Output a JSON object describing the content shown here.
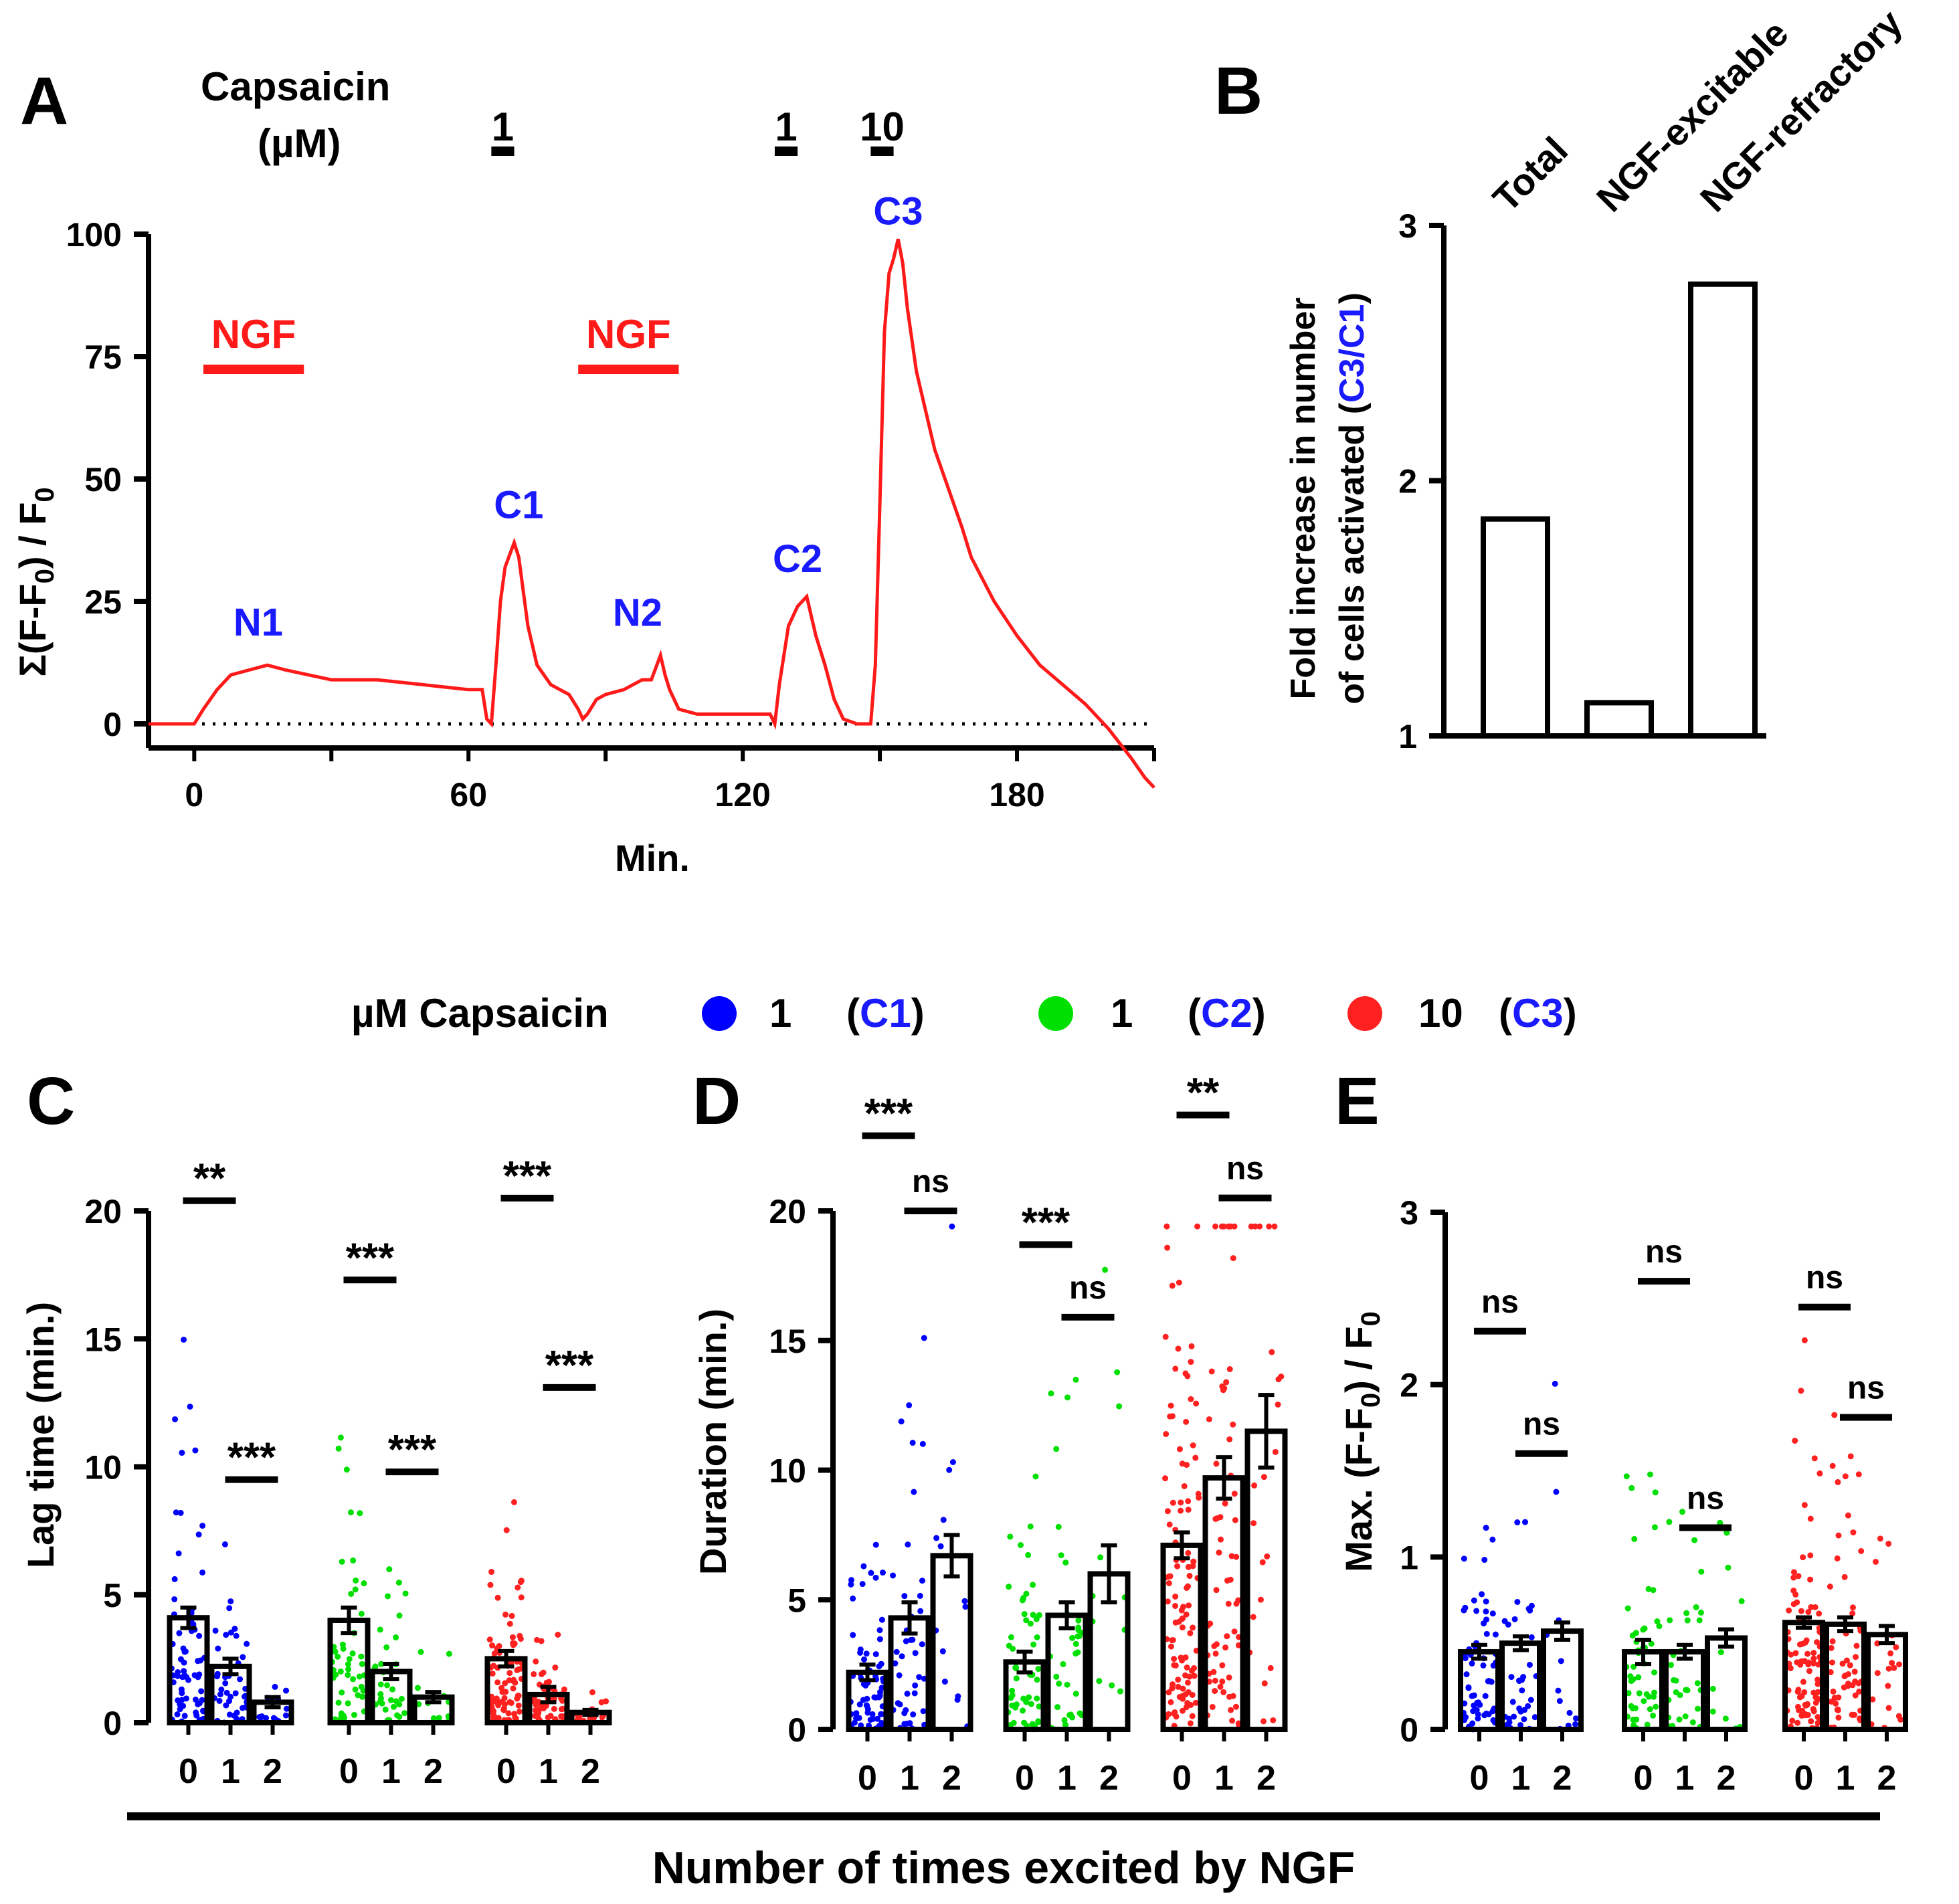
{
  "legend": {
    "prefix": "µM Capsaicin",
    "items": [
      {
        "conc": "1",
        "cond": "C1",
        "color": "#0000ff"
      },
      {
        "conc": "1",
        "cond": "C2",
        "color": "#00e000"
      },
      {
        "conc": "10",
        "cond": "C3",
        "color": "#ff2020"
      }
    ]
  },
  "bottom_label": "Number of times excited by NGF",
  "colors": {
    "trace": "#ff1a1a",
    "label_blue": "#1a1aff",
    "red": "#ff1a1a"
  },
  "chart_data": [
    {
      "panel": "A",
      "type": "line",
      "ylabel": "Σ(F-F0) / F0",
      "xlabel": "Min.",
      "xlim": [
        -10,
        210
      ],
      "ylim": [
        0,
        100
      ],
      "xticks": [
        "0",
        "60",
        "120",
        "180"
      ],
      "yticks": [
        "0",
        "25",
        "50",
        "75",
        "100"
      ],
      "capsaicin_label": [
        "Capsaicin",
        "(µM)"
      ],
      "applications": [
        {
          "label": "1",
          "start": 65,
          "end": 70
        },
        {
          "label": "1",
          "start": 127,
          "end": 132
        },
        {
          "label": "10",
          "start": 148,
          "end": 153
        }
      ],
      "ngf_bars": [
        {
          "label": "NGF",
          "start": 2,
          "end": 24
        },
        {
          "label": "NGF",
          "start": 84,
          "end": 106
        }
      ],
      "annotations": [
        {
          "text": "N1",
          "x": 14,
          "y": 18
        },
        {
          "text": "C1",
          "x": 71,
          "y": 42
        },
        {
          "text": "N2",
          "x": 97,
          "y": 20
        },
        {
          "text": "C2",
          "x": 132,
          "y": 31
        },
        {
          "text": "C3",
          "x": 154,
          "y": 102
        }
      ],
      "series": [
        {
          "name": "trace",
          "x": [
            -10,
            0,
            2,
            5,
            8,
            12,
            16,
            20,
            25,
            30,
            40,
            50,
            55,
            60,
            63,
            64,
            65,
            66,
            67,
            68,
            70,
            71,
            72,
            73,
            75,
            78,
            82,
            84,
            85,
            86,
            88,
            90,
            94,
            98,
            100,
            102,
            103,
            104,
            106,
            110,
            116,
            122,
            126,
            127,
            128,
            130,
            132,
            134,
            136,
            138,
            140,
            142,
            145,
            147,
            148,
            149,
            150,
            151,
            152,
            153,
            154,
            155,
            156,
            158,
            160,
            162,
            165,
            168,
            170,
            175,
            180,
            185,
            190,
            195,
            200,
            205,
            208,
            210
          ],
          "y": [
            0,
            0,
            3,
            7,
            10,
            11,
            12,
            11,
            10,
            9,
            9,
            8,
            7.5,
            7,
            7,
            1,
            0,
            12,
            25,
            32,
            37,
            34,
            27,
            20,
            12,
            8,
            6,
            3,
            1,
            2,
            5,
            6,
            7,
            9,
            9,
            14,
            10,
            7,
            3,
            2,
            2,
            2,
            2,
            0,
            8,
            20,
            24,
            26,
            18,
            12,
            5,
            1,
            0,
            0,
            0,
            12,
            45,
            80,
            92,
            95,
            99,
            94,
            85,
            72,
            64,
            56,
            48,
            40,
            34,
            25,
            18,
            12,
            8,
            4,
            -1,
            -7,
            -11,
            -13
          ]
        }
      ]
    },
    {
      "panel": "B",
      "type": "bar",
      "ylabel_parts": [
        "Fold increase in number",
        "of cells activated (",
        "C3/C1",
        ")"
      ],
      "categories": [
        "Total",
        "NGF-excitable",
        "NGF-refractory"
      ],
      "values": [
        1.85,
        1.13,
        2.77
      ],
      "ylim": [
        1,
        3
      ],
      "yticks": [
        "1",
        "2",
        "3"
      ]
    },
    {
      "panel": "C",
      "type": "bar",
      "ylabel": "Lag time (min.)",
      "ylim": [
        0,
        20
      ],
      "yticks": [
        "0",
        "5",
        "10",
        "15",
        "20"
      ],
      "categories": [
        "0",
        "1",
        "2"
      ],
      "series": [
        {
          "name": "C1",
          "values": [
            4.1,
            2.2,
            0.8
          ],
          "errors": [
            0.4,
            0.3,
            0.2
          ]
        },
        {
          "name": "C2",
          "values": [
            4.0,
            2.0,
            1.0
          ],
          "errors": [
            0.5,
            0.3,
            0.2
          ]
        },
        {
          "name": "C3",
          "values": [
            2.5,
            1.1,
            0.4
          ],
          "errors": [
            0.3,
            0.3,
            0.1
          ]
        }
      ],
      "significance": [
        {
          "group": 0,
          "pair": "0-1",
          "y": 20.4,
          "text": "**"
        },
        {
          "group": 0,
          "pair": "1-2",
          "y": 9.5,
          "text": "***"
        },
        {
          "group": 1,
          "pair": "0-1",
          "y": 17.3,
          "text": "***"
        },
        {
          "group": 1,
          "pair": "1-2",
          "y": 9.8,
          "text": "***"
        },
        {
          "group": 2,
          "pair": "0-1",
          "y": 20.5,
          "text": "***"
        },
        {
          "group": 2,
          "pair": "1-2",
          "y": 13.1,
          "text": "***"
        }
      ]
    },
    {
      "panel": "D",
      "type": "bar",
      "ylabel": "Duration (min.)",
      "ylim": [
        0,
        20
      ],
      "yticks": [
        "0",
        "5",
        "10",
        "15",
        "20"
      ],
      "categories": [
        "0",
        "1",
        "2"
      ],
      "series": [
        {
          "name": "C1",
          "values": [
            2.2,
            4.3,
            6.7
          ],
          "errors": [
            0.3,
            0.6,
            0.8
          ]
        },
        {
          "name": "C2",
          "values": [
            2.6,
            4.4,
            6.0
          ],
          "errors": [
            0.4,
            0.5,
            1.1
          ]
        },
        {
          "name": "C3",
          "values": [
            7.1,
            9.7,
            11.5
          ],
          "errors": [
            0.5,
            0.8,
            1.4
          ]
        }
      ],
      "significance": [
        {
          "group": 0,
          "pair": "0-1",
          "y": 22.9,
          "text": "***"
        },
        {
          "group": 0,
          "pair": "1-2",
          "y": 20.0,
          "text": "ns"
        },
        {
          "group": 1,
          "pair": "0-1",
          "y": 18.7,
          "text": "***"
        },
        {
          "group": 1,
          "pair": "1-2",
          "y": 15.9,
          "text": "ns"
        },
        {
          "group": 2,
          "pair": "0-1",
          "y": 23.7,
          "text": "**"
        },
        {
          "group": 2,
          "pair": "1-2",
          "y": 20.5,
          "text": "ns"
        }
      ]
    },
    {
      "panel": "E",
      "type": "bar",
      "ylabel": "Max. (F-F0) / F0",
      "ylim": [
        0,
        3
      ],
      "yticks": [
        "0",
        "1",
        "2",
        "3"
      ],
      "categories": [
        "0",
        "1",
        "2"
      ],
      "series": [
        {
          "name": "C1",
          "values": [
            0.45,
            0.5,
            0.57
          ],
          "errors": [
            0.04,
            0.04,
            0.05
          ]
        },
        {
          "name": "C2",
          "values": [
            0.45,
            0.45,
            0.53
          ],
          "errors": [
            0.07,
            0.04,
            0.05
          ]
        },
        {
          "name": "C3",
          "values": [
            0.62,
            0.61,
            0.55
          ],
          "errors": [
            0.03,
            0.04,
            0.05
          ]
        }
      ],
      "significance": [
        {
          "group": 0,
          "pair": "0-1",
          "y": 2.31,
          "text": "ns"
        },
        {
          "group": 0,
          "pair": "1-2",
          "y": 1.6,
          "text": "ns"
        },
        {
          "group": 1,
          "pair": "0-1",
          "y": 2.6,
          "text": "ns"
        },
        {
          "group": 1,
          "pair": "1-2",
          "y": 1.17,
          "text": "ns"
        },
        {
          "group": 2,
          "pair": "0-1",
          "y": 2.45,
          "text": "ns"
        },
        {
          "group": 2,
          "pair": "1-2",
          "y": 1.81,
          "text": "ns"
        }
      ]
    }
  ]
}
